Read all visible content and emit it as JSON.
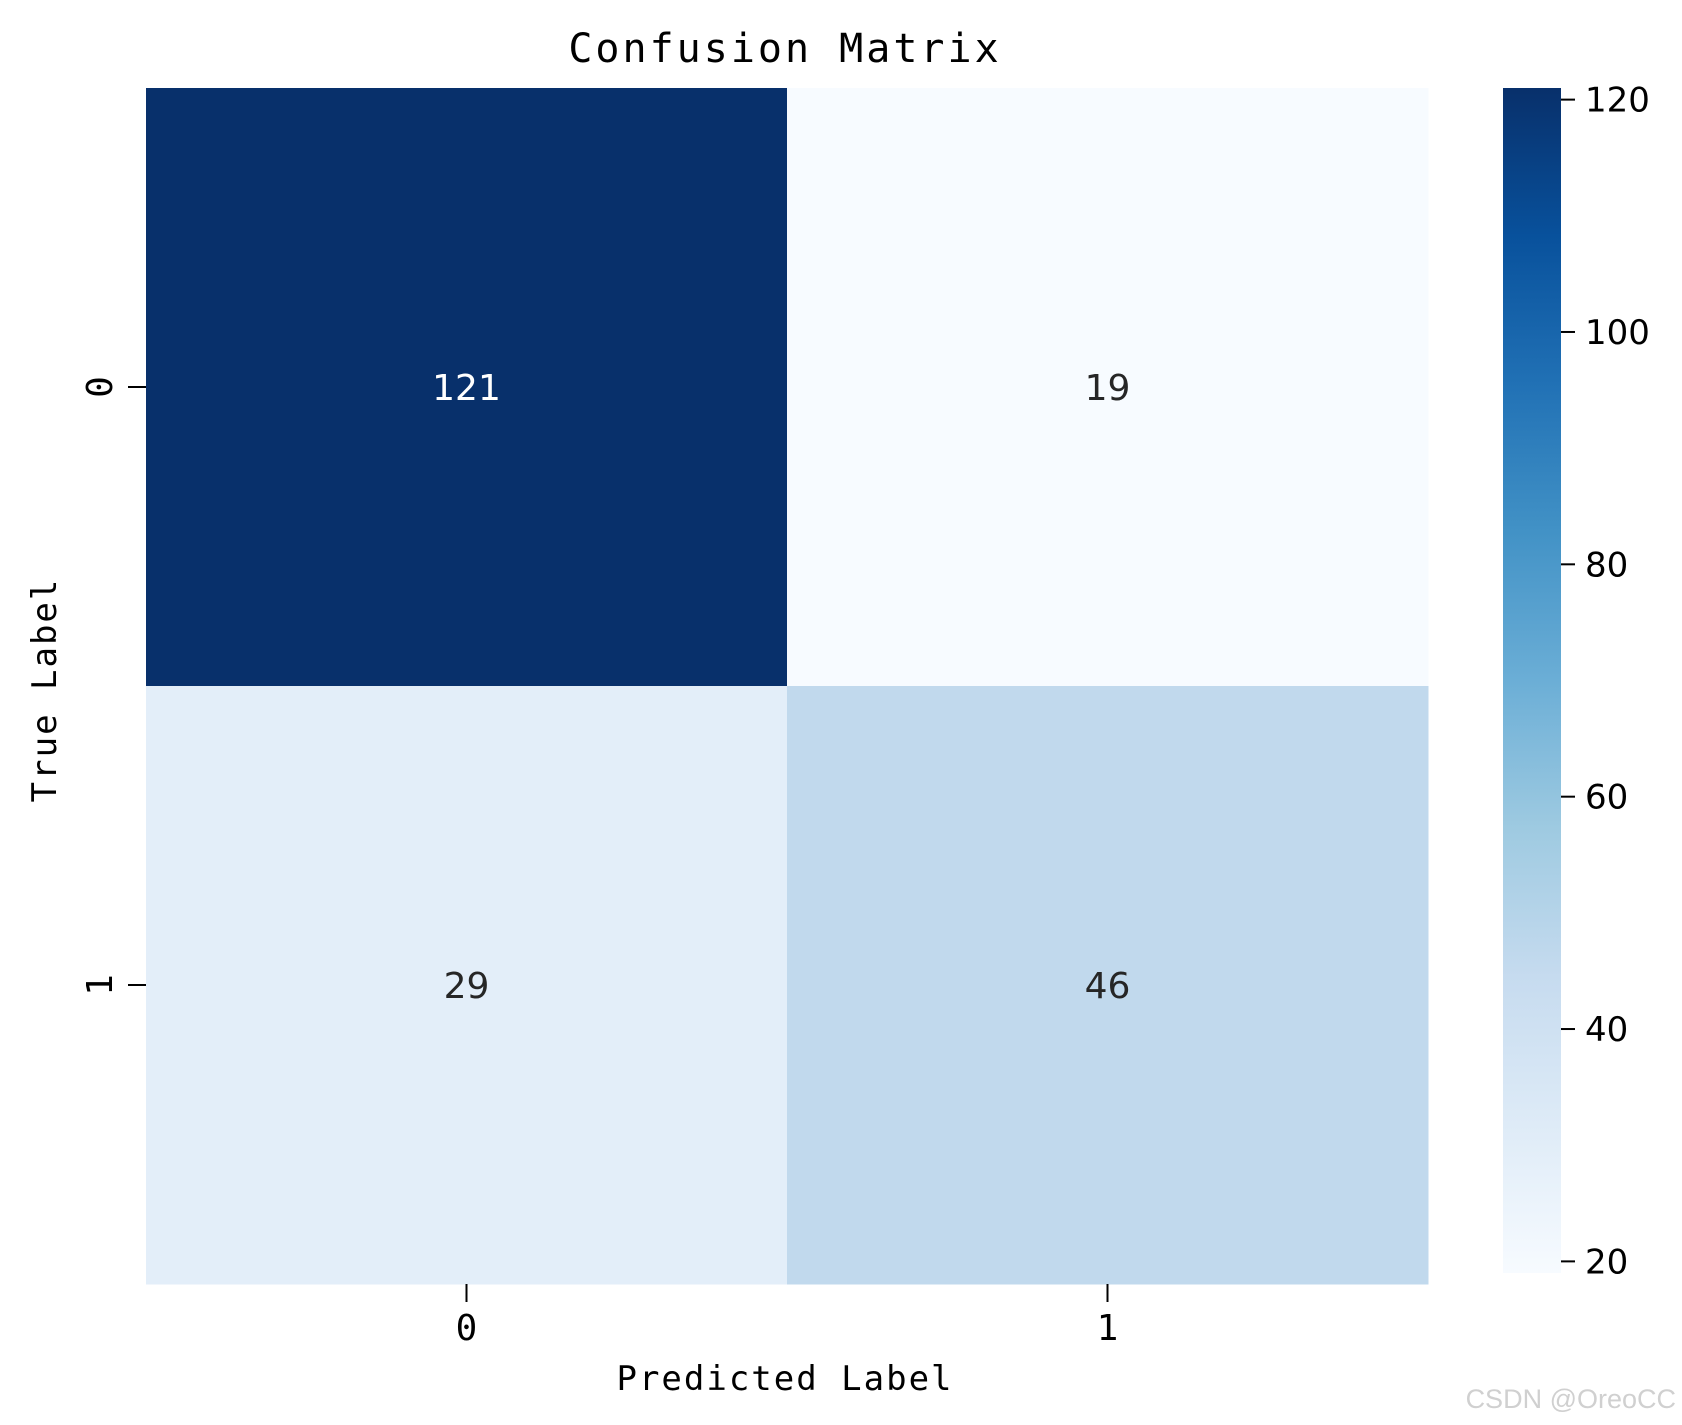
{
  "chart_data": {
    "type": "heatmap",
    "title": "Confusion Matrix",
    "xlabel": "Predicted Label",
    "ylabel": "True Label",
    "x_categories": [
      "0",
      "1"
    ],
    "y_categories": [
      "0",
      "1"
    ],
    "values": [
      [
        121,
        19
      ],
      [
        29,
        46
      ]
    ],
    "colormap": "Blues",
    "colorbar": {
      "min": 19,
      "max": 121,
      "ticks": [
        20,
        40,
        60,
        80,
        100,
        120
      ]
    },
    "grid": false
  },
  "watermark": "CSDN @OreoCC"
}
